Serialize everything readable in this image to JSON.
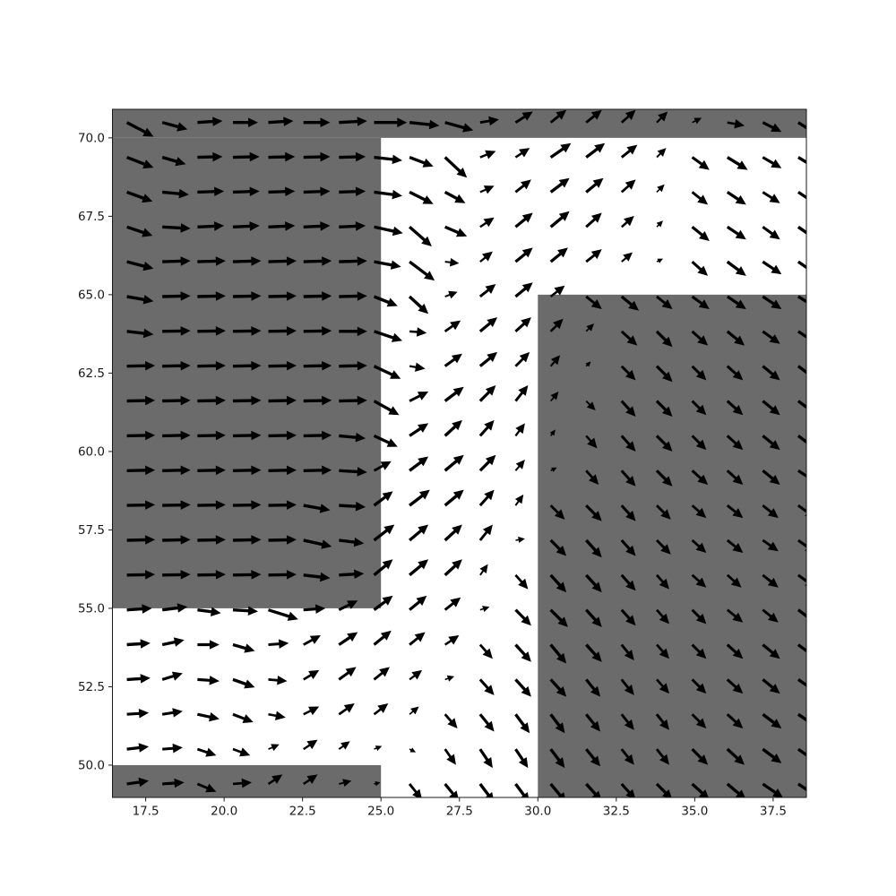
{
  "figure": {
    "background": "#ffffff",
    "mask_color": "#6b6b6b",
    "arrow_color": "#000000",
    "spine_color": "#1a1a1a",
    "tick_color": "#1a1a1a",
    "tick_font_px": 13.5
  },
  "chart_data": {
    "type": "quiver",
    "title": "",
    "xlabel": "",
    "ylabel": "",
    "grid": false,
    "legend": null,
    "xlim": [
      16.44,
      38.56
    ],
    "ylim": [
      48.97,
      70.91
    ],
    "x_tick_values": [
      17.5,
      20.0,
      22.5,
      25.0,
      27.5,
      30.0,
      32.5,
      35.0,
      37.5
    ],
    "x_tick_labels": [
      "17.5",
      "20.0",
      "22.5",
      "25.0",
      "27.5",
      "30.0",
      "32.5",
      "35.0",
      "37.5"
    ],
    "y_tick_values": [
      50.0,
      52.5,
      55.0,
      57.5,
      60.0,
      62.5,
      65.0,
      67.5,
      70.0
    ],
    "y_tick_labels": [
      "50.0",
      "52.5",
      "55.0",
      "57.5",
      "60.0",
      "62.5",
      "65.0",
      "67.5",
      "70.0"
    ],
    "mask_rects": [
      {
        "name": "top-strip",
        "x0": 16.44,
        "y0": 70.0,
        "x1": 38.56,
        "y1": 70.91
      },
      {
        "name": "left-block",
        "x0": 16.44,
        "y0": 55.0,
        "x1": 25.0,
        "y1": 70.0
      },
      {
        "name": "bottom-left-strip",
        "x0": 16.44,
        "y0": 48.97,
        "x1": 25.0,
        "y1": 50.0
      },
      {
        "name": "right-block",
        "x0": 30.0,
        "y0": 48.97,
        "x1": 38.56,
        "y1": 65.0
      }
    ],
    "x": [
      16.9,
      18.03,
      19.15,
      20.28,
      21.41,
      22.53,
      23.66,
      24.78,
      25.91,
      27.04,
      28.16,
      29.29,
      30.41,
      31.54,
      32.67,
      33.79,
      34.92,
      36.04,
      37.17,
      38.3
    ],
    "y": [
      49.4,
      50.51,
      51.62,
      52.73,
      53.84,
      54.95,
      56.06,
      57.17,
      58.28,
      59.39,
      60.5,
      61.61,
      62.72,
      63.83,
      64.94,
      66.05,
      67.16,
      68.27,
      69.38,
      70.49
    ],
    "u": [
      [
        0.7,
        0.7,
        0.6,
        0.6,
        0.45,
        0.45,
        0.4,
        0.2,
        0.4,
        0.45,
        0.45,
        0.45,
        0.5,
        0.5,
        0.45,
        0.5,
        0.55,
        0.6,
        0.65,
        0.75
      ],
      [
        0.7,
        0.65,
        0.6,
        0.55,
        0.35,
        0.45,
        0.35,
        0.25,
        0.2,
        0.35,
        0.4,
        0.4,
        0.45,
        0.45,
        0.4,
        0.4,
        0.5,
        0.55,
        0.6,
        0.7
      ],
      [
        0.7,
        0.65,
        0.7,
        0.65,
        0.55,
        0.5,
        0.5,
        0.45,
        0.3,
        0.4,
        0.45,
        0.45,
        0.45,
        0.45,
        0.4,
        0.4,
        0.45,
        0.5,
        0.6,
        0.65
      ],
      [
        0.75,
        0.65,
        0.7,
        0.7,
        0.6,
        0.5,
        0.55,
        0.5,
        0.4,
        0.3,
        0.45,
        0.5,
        0.5,
        0.45,
        0.4,
        0.4,
        0.45,
        0.5,
        0.55,
        0.65
      ],
      [
        0.75,
        0.7,
        0.7,
        0.7,
        0.65,
        0.55,
        0.6,
        0.55,
        0.5,
        0.45,
        0.4,
        0.5,
        0.5,
        0.5,
        0.4,
        0.4,
        0.45,
        0.5,
        0.55,
        0.6
      ],
      [
        0.8,
        0.8,
        0.75,
        0.8,
        0.95,
        0.7,
        0.6,
        0.6,
        0.55,
        0.5,
        0.3,
        0.5,
        0.55,
        0.5,
        0.45,
        0.4,
        0.45,
        0.5,
        0.5,
        0.6
      ],
      [
        0.9,
        0.9,
        0.9,
        0.9,
        0.9,
        0.85,
        0.8,
        0.6,
        0.6,
        0.55,
        0.25,
        0.4,
        0.5,
        0.5,
        0.45,
        0.4,
        0.45,
        0.45,
        0.5,
        0.55
      ],
      [
        0.9,
        0.9,
        0.9,
        0.9,
        0.9,
        0.9,
        0.8,
        0.65,
        0.6,
        0.55,
        0.4,
        0.3,
        0.5,
        0.5,
        0.45,
        0.45,
        0.45,
        0.5,
        0.5,
        0.55
      ],
      [
        0.9,
        0.9,
        0.9,
        0.9,
        0.9,
        0.85,
        0.85,
        0.6,
        0.65,
        0.6,
        0.45,
        0.25,
        0.45,
        0.5,
        0.45,
        0.45,
        0.45,
        0.5,
        0.5,
        0.55
      ],
      [
        0.9,
        0.9,
        0.9,
        0.9,
        0.9,
        0.9,
        0.9,
        0.55,
        0.6,
        0.6,
        0.5,
        0.3,
        0.2,
        0.4,
        0.45,
        0.5,
        0.5,
        0.5,
        0.55,
        0.6
      ],
      [
        0.9,
        0.9,
        0.9,
        0.9,
        0.9,
        0.9,
        0.85,
        0.75,
        0.6,
        0.55,
        0.45,
        0.3,
        0.15,
        0.35,
        0.45,
        0.5,
        0.45,
        0.5,
        0.55,
        0.6
      ],
      [
        0.9,
        0.9,
        0.9,
        0.9,
        0.9,
        0.9,
        0.9,
        0.8,
        0.6,
        0.6,
        0.5,
        0.4,
        0.25,
        0.3,
        0.45,
        0.5,
        0.45,
        0.5,
        0.55,
        0.6
      ],
      [
        0.9,
        0.9,
        0.9,
        0.9,
        0.9,
        0.9,
        0.9,
        0.85,
        0.5,
        0.55,
        0.55,
        0.45,
        0.3,
        0.15,
        0.45,
        0.5,
        0.45,
        0.5,
        0.55,
        0.6
      ],
      [
        0.85,
        0.9,
        0.9,
        0.9,
        0.9,
        0.9,
        0.9,
        0.9,
        0.55,
        0.5,
        0.55,
        0.5,
        0.4,
        0.25,
        0.5,
        0.5,
        0.5,
        0.55,
        0.55,
        0.6
      ],
      [
        0.85,
        0.9,
        0.9,
        0.9,
        0.9,
        0.9,
        0.9,
        0.75,
        0.6,
        0.4,
        0.5,
        0.55,
        0.45,
        0.5,
        0.55,
        0.5,
        0.55,
        0.6,
        0.6,
        0.65
      ],
      [
        0.85,
        0.9,
        0.9,
        0.9,
        0.9,
        0.9,
        0.9,
        0.86,
        0.8,
        0.45,
        0.4,
        0.55,
        0.55,
        0.5,
        0.35,
        0.2,
        0.5,
        0.6,
        0.6,
        0.65
      ],
      [
        0.82,
        0.9,
        0.85,
        0.85,
        0.85,
        0.85,
        0.85,
        0.92,
        0.71,
        0.7,
        0.45,
        0.55,
        0.6,
        0.5,
        0.4,
        0.2,
        0.55,
        0.6,
        0.55,
        0.65
      ],
      [
        0.82,
        0.85,
        0.85,
        0.85,
        0.85,
        0.85,
        0.85,
        0.9,
        0.76,
        0.65,
        0.45,
        0.5,
        0.6,
        0.55,
        0.45,
        0.25,
        0.5,
        0.6,
        0.55,
        0.6
      ],
      [
        0.85,
        0.75,
        0.8,
        0.85,
        0.85,
        0.85,
        0.85,
        0.9,
        0.76,
        0.7,
        0.5,
        0.45,
        0.65,
        0.6,
        0.5,
        0.3,
        0.55,
        0.65,
        0.6,
        0.65
      ],
      [
        0.85,
        0.8,
        0.8,
        0.8,
        0.8,
        0.85,
        0.9,
        1.05,
        0.95,
        0.9,
        0.6,
        0.55,
        0.5,
        0.5,
        0.45,
        0.35,
        0.3,
        0.55,
        0.6,
        0.7
      ]
    ],
    "v": [
      [
        0.1,
        0.05,
        -0.25,
        0.05,
        0.3,
        0.3,
        0.1,
        0.05,
        -0.5,
        -0.55,
        -0.6,
        -0.6,
        -0.6,
        -0.55,
        -0.5,
        -0.5,
        -0.5,
        -0.5,
        -0.45,
        -0.5
      ],
      [
        0.08,
        0.05,
        -0.2,
        -0.2,
        0.15,
        0.3,
        0.25,
        0.1,
        -0.1,
        -0.5,
        -0.6,
        -0.6,
        -0.6,
        -0.55,
        -0.5,
        -0.5,
        -0.5,
        -0.5,
        -0.45,
        -0.5
      ],
      [
        0.05,
        0.1,
        -0.15,
        -0.25,
        -0.1,
        0.25,
        0.35,
        0.35,
        0.25,
        -0.45,
        -0.55,
        -0.6,
        -0.6,
        -0.55,
        -0.5,
        -0.5,
        -0.45,
        -0.45,
        -0.45,
        -0.45
      ],
      [
        0.05,
        0.2,
        -0.05,
        -0.25,
        -0.05,
        0.3,
        0.4,
        0.4,
        0.3,
        0.1,
        -0.5,
        -0.55,
        -0.55,
        -0.55,
        -0.5,
        -0.45,
        -0.45,
        -0.45,
        -0.45,
        -0.45
      ],
      [
        0.05,
        0.15,
        0.0,
        -0.2,
        0.05,
        0.3,
        0.4,
        0.45,
        0.4,
        0.3,
        -0.45,
        -0.55,
        -0.6,
        -0.55,
        -0.5,
        -0.45,
        -0.45,
        -0.45,
        -0.45,
        -0.45
      ],
      [
        0.05,
        0.1,
        -0.1,
        -0.05,
        -0.3,
        0.05,
        0.3,
        0.45,
        0.45,
        0.4,
        0.1,
        -0.5,
        -0.55,
        -0.55,
        -0.5,
        -0.45,
        -0.45,
        -0.4,
        -0.4,
        -0.45
      ],
      [
        0.02,
        0.02,
        0.02,
        0.02,
        0.02,
        -0.1,
        0.05,
        0.5,
        0.5,
        0.5,
        0.35,
        -0.45,
        -0.55,
        -0.55,
        -0.5,
        -0.45,
        -0.4,
        -0.4,
        -0.4,
        -0.4
      ],
      [
        0.02,
        0.02,
        0.02,
        0.02,
        0.02,
        -0.2,
        -0.1,
        0.5,
        0.5,
        0.5,
        0.5,
        0.05,
        -0.5,
        -0.55,
        -0.5,
        -0.45,
        -0.4,
        -0.4,
        -0.35,
        -0.4
      ],
      [
        0.02,
        0.02,
        0.02,
        0.02,
        0.02,
        -0.15,
        -0.05,
        0.45,
        0.5,
        0.5,
        0.5,
        0.35,
        -0.45,
        -0.5,
        -0.5,
        -0.45,
        -0.4,
        -0.4,
        -0.4,
        -0.4
      ],
      [
        0.02,
        0.02,
        0.02,
        0.02,
        0.02,
        0.02,
        -0.05,
        0.3,
        0.45,
        0.5,
        0.5,
        0.35,
        0.1,
        -0.45,
        -0.5,
        -0.5,
        -0.45,
        -0.45,
        -0.45,
        -0.4
      ],
      [
        0.02,
        0.02,
        0.02,
        0.02,
        0.02,
        0.02,
        -0.08,
        -0.35,
        0.4,
        0.5,
        0.5,
        0.4,
        0.2,
        -0.4,
        -0.5,
        -0.5,
        -0.45,
        -0.45,
        -0.45,
        -0.45
      ],
      [
        0.02,
        0.02,
        0.02,
        0.02,
        0.02,
        0.02,
        0.02,
        -0.45,
        0.3,
        0.45,
        0.5,
        0.5,
        0.3,
        -0.3,
        -0.5,
        -0.5,
        -0.45,
        -0.45,
        -0.45,
        -0.45
      ],
      [
        0.02,
        0.02,
        0.02,
        0.02,
        0.02,
        0.02,
        0.02,
        -0.4,
        -0.08,
        0.4,
        0.45,
        0.45,
        0.35,
        0.15,
        -0.45,
        -0.5,
        -0.45,
        -0.45,
        -0.45,
        -0.45
      ],
      [
        -0.1,
        0.02,
        0.02,
        0.02,
        0.02,
        0.02,
        0.0,
        -0.3,
        -0.05,
        0.35,
        0.45,
        0.45,
        0.4,
        0.25,
        -0.45,
        -0.5,
        -0.45,
        -0.45,
        -0.4,
        -0.4
      ],
      [
        -0.15,
        0.02,
        0.02,
        0.02,
        0.02,
        0.02,
        0.02,
        -0.3,
        -0.55,
        0.15,
        0.4,
        0.45,
        0.35,
        -0.4,
        -0.45,
        -0.4,
        -0.4,
        -0.4,
        -0.4,
        -0.4
      ],
      [
        -0.22,
        0.03,
        0.03,
        0.03,
        0.03,
        0.03,
        0.03,
        -0.16,
        -0.6,
        -0.05,
        0.33,
        0.45,
        0.45,
        0.4,
        0.3,
        0.1,
        -0.45,
        -0.45,
        -0.4,
        -0.45
      ],
      [
        -0.28,
        -0.05,
        0.04,
        0.04,
        0.04,
        0.04,
        0.04,
        -0.2,
        -0.62,
        -0.3,
        0.3,
        0.45,
        0.5,
        0.45,
        0.35,
        0.2,
        -0.45,
        -0.4,
        -0.4,
        -0.45
      ],
      [
        -0.3,
        -0.08,
        0.03,
        0.03,
        0.03,
        0.03,
        0.03,
        -0.12,
        -0.38,
        -0.35,
        0.2,
        0.4,
        0.45,
        0.45,
        0.4,
        0.25,
        -0.4,
        -0.4,
        -0.35,
        -0.4
      ],
      [
        -0.33,
        -0.22,
        0.02,
        0.02,
        0.02,
        0.02,
        0.02,
        -0.1,
        -0.29,
        -0.65,
        0.2,
        0.3,
        0.45,
        0.45,
        0.4,
        0.3,
        -0.4,
        -0.4,
        -0.35,
        -0.4
      ],
      [
        -0.45,
        -0.22,
        0.05,
        0.0,
        0.05,
        0.0,
        0.05,
        0.0,
        -0.1,
        -0.25,
        0.1,
        0.35,
        0.4,
        0.4,
        0.4,
        0.35,
        0.15,
        -0.1,
        -0.3,
        -0.45
      ]
    ]
  }
}
